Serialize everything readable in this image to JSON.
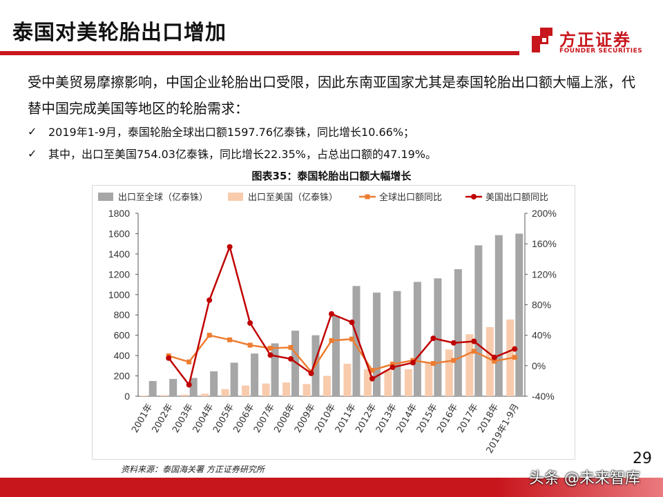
{
  "slide": {
    "title": "泰国对美轮胎出口增加",
    "paragraph": "受中美贸易摩擦影响，中国企业轮胎出口受限，因此东南亚国家尤其是泰国轮胎出口额大幅上涨，代替中国完成美国等地区的轮胎需求：",
    "bullets": [
      "2019年1-9月，泰国轮胎全球出口额1597.76亿泰铢，同比增长10.66%；",
      "其中，出口至美国754.03亿泰铢，同比增长22.35%，占总出口额的47.19%。"
    ],
    "check_icon": "check-icon",
    "chart_title": "图表35：泰国轮胎出口额大幅增长",
    "source": "资料来源：泰国海关署 方正证券研究所",
    "page_number": "29",
    "watermark": "头条 @未来智库"
  },
  "logo": {
    "name_cn": "方正证券",
    "name_en": "FOUNDER SECURITIES",
    "color": "#c8161d"
  },
  "colors": {
    "accent": "#c8161d",
    "global_bar": "#a6a6a6",
    "us_bar": "#f8cbad",
    "global_line": "#ed7d31",
    "us_line": "#c00000"
  },
  "chart_data": {
    "type": "bar",
    "categories": [
      "2001年",
      "2002年",
      "2003年",
      "2004年",
      "2005年",
      "2006年",
      "2007年",
      "2008年",
      "2009年",
      "2010年",
      "2011年",
      "2012年",
      "2013年",
      "2014年",
      "2015年",
      "2016年",
      "2017年",
      "2018年",
      "2019年1-9月"
    ],
    "series": [
      {
        "name": "出口至全球（亿泰铢）",
        "type": "bar",
        "axis": "left",
        "values": [
          150,
          170,
          180,
          245,
          330,
          420,
          520,
          645,
          600,
          790,
          1085,
          1020,
          1035,
          1125,
          1160,
          1250,
          1485,
          1585,
          1600
        ]
      },
      {
        "name": "出口至美国（亿泰铢）",
        "type": "bar",
        "axis": "left",
        "values": [
          5,
          10,
          15,
          25,
          70,
          105,
          125,
          135,
          120,
          200,
          320,
          265,
          255,
          265,
          325,
          460,
          610,
          680,
          755
        ]
      },
      {
        "name": "全球出口额同比",
        "type": "line",
        "axis": "right",
        "marker": "square",
        "values": [
          null,
          13,
          5,
          40,
          34,
          27,
          23,
          24,
          -8,
          33,
          35,
          -6,
          2,
          7,
          3,
          7,
          19,
          6,
          11
        ]
      },
      {
        "name": "美国出口额同比",
        "type": "line",
        "axis": "right",
        "marker": "circle",
        "values": [
          null,
          10,
          -25,
          86,
          156,
          56,
          14,
          9,
          -10,
          68,
          57,
          -17,
          -2,
          4,
          36,
          30,
          32,
          11,
          22
        ]
      }
    ],
    "yleft": {
      "ylim": [
        0,
        1800
      ],
      "ticks": [
        "0",
        "200",
        "400",
        "600",
        "800",
        "1000",
        "1200",
        "1400",
        "1600",
        "1800"
      ]
    },
    "yright": {
      "ylim": [
        -40,
        200
      ],
      "ticks": [
        "-40%",
        "0%",
        "40%",
        "80%",
        "120%",
        "160%",
        "200%"
      ]
    },
    "grid": false,
    "legend": "top"
  }
}
